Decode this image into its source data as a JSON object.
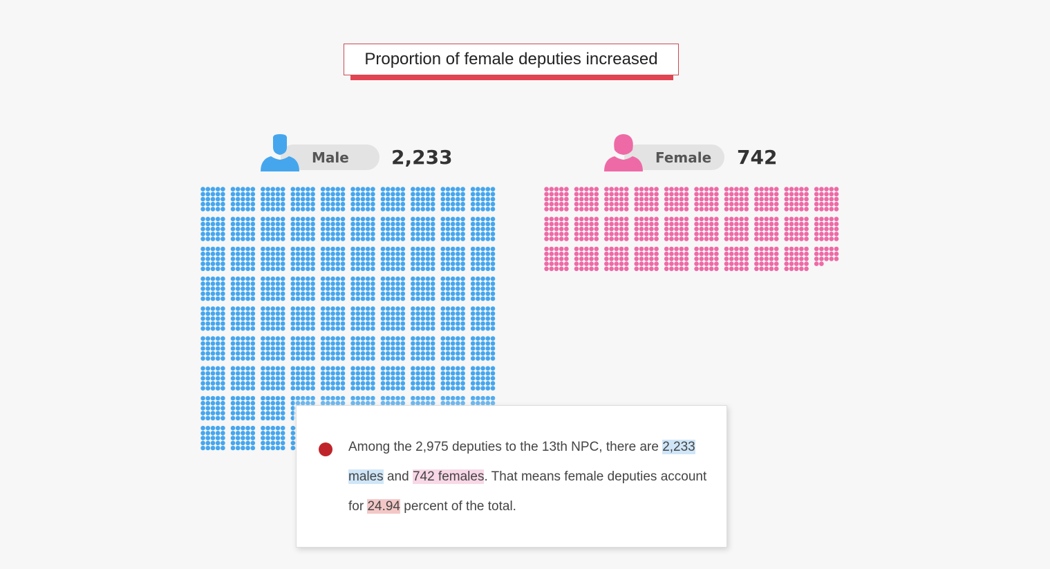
{
  "title": "Proportion of female deputies increased",
  "colors": {
    "male": "#45a6ee",
    "female": "#ee6aa6",
    "accent": "#e24552",
    "dot": "#c0242b"
  },
  "legend": {
    "male": {
      "label": "Male",
      "count_text": "2,233",
      "icon": "male-person-icon"
    },
    "female": {
      "label": "Female",
      "count_text": "742",
      "icon": "female-person-icon"
    }
  },
  "chart_data": {
    "type": "pictogram",
    "unit_per_dot": 1,
    "series": [
      {
        "name": "Male",
        "value": 2233,
        "color": "#45a6ee"
      },
      {
        "name": "Female",
        "value": 742,
        "color": "#ee6aa6"
      }
    ],
    "total": 2975
  },
  "note": {
    "line1": "Among the 2,975 deputies to the 13th NPC, there are",
    "male_highlight": "2,233 males",
    "and_text": " and ",
    "female_highlight": "742 females",
    "line2_rest": ". That means female deputies account for ",
    "percent": "24.94",
    "tail": " percent of the total."
  }
}
